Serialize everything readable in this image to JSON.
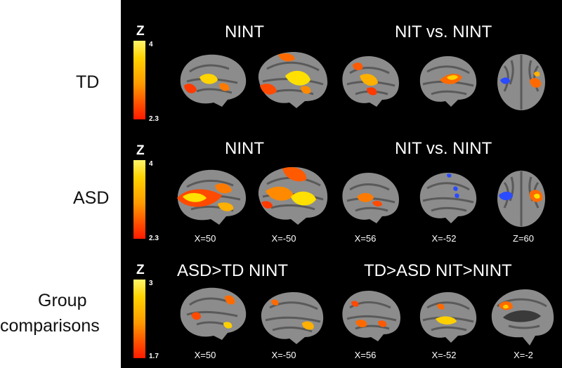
{
  "row_labels": {
    "td": "TD",
    "asd": "ASD",
    "group_line1": "Group",
    "group_line2": "comparisons"
  },
  "rows": [
    {
      "id": "td",
      "left_heading": "NINT",
      "right_heading": "NIT vs. NINT",
      "colorbar": {
        "label": "Z",
        "max": "4",
        "min": "2.3"
      }
    },
    {
      "id": "asd",
      "left_heading": "NINT",
      "right_heading": "NIT vs. NINT",
      "colorbar": {
        "label": "Z",
        "max": "4",
        "min": "2.3"
      },
      "coords": [
        "X=50",
        "X=-50",
        "X=56",
        "X=-52",
        "Z=60"
      ]
    },
    {
      "id": "group",
      "left_heading": "ASD>TD NINT",
      "right_heading": "TD>ASD NIT>NINT",
      "colorbar": {
        "label": "Z",
        "max": "3",
        "min": "1.7"
      },
      "coords": [
        "X=50",
        "X=-50",
        "X=56",
        "X=-52",
        "X=-2"
      ]
    }
  ],
  "colors": {
    "panel_background": "#000000",
    "activation_high": "#ffe600",
    "activation_low": "#ff2a00",
    "deactivation": "#2a4bff",
    "brain_gray": "#8c8c8c"
  }
}
